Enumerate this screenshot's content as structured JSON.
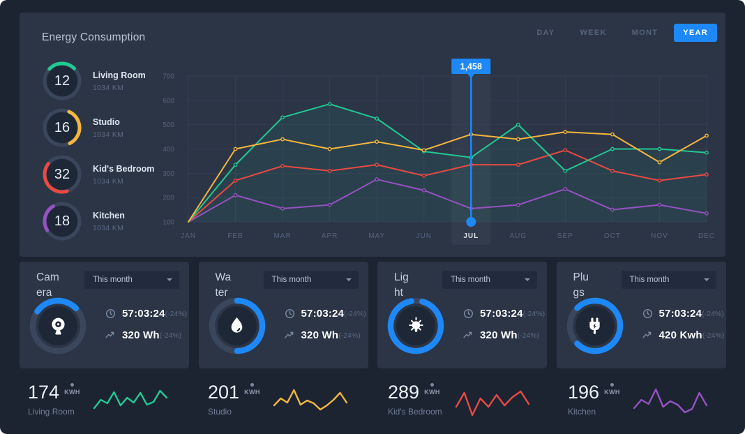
{
  "header": {
    "title": "Energy Consumption",
    "tabs": [
      {
        "label": "DAY",
        "active": false
      },
      {
        "label": "WEEK",
        "active": false
      },
      {
        "label": "MONT",
        "active": false
      },
      {
        "label": "YEAR",
        "active": true
      }
    ]
  },
  "accent": "#1e88f7",
  "gauges": [
    {
      "value": "12",
      "name": "Living Room",
      "sub": "1034 KM",
      "color": "#22c993",
      "arc_pct": 25,
      "arc_rotate": -135
    },
    {
      "value": "16",
      "name": "Studio",
      "sub": "1034 KM",
      "color": "#f5b63e",
      "arc_pct": 36,
      "arc_rotate": -65
    },
    {
      "value": "32",
      "name": "Kid's Bedroom",
      "sub": "1034 KM",
      "color": "#e94a41",
      "arc_pct": 40,
      "arc_rotate": 75
    },
    {
      "value": "18",
      "name": "Kitchen",
      "sub": "1034 KM",
      "color": "#9552c1",
      "arc_pct": 25,
      "arc_rotate": 150
    }
  ],
  "chart_data": {
    "type": "line",
    "title": "Energy Consumption",
    "categories": [
      "JAN",
      "FEB",
      "MAR",
      "APR",
      "MAY",
      "JUN",
      "JUL",
      "AUG",
      "SEP",
      "OCT",
      "NOV",
      "DEC"
    ],
    "yticks": [
      700,
      600,
      500,
      400,
      300,
      200,
      100
    ],
    "ylim": [
      100,
      700
    ],
    "grid": true,
    "legend": false,
    "selected_month": "JUL",
    "tooltip_value": "1,458",
    "series": [
      {
        "name": "Kitchen",
        "color": "#9552c1",
        "values": [
          100,
          210,
          155,
          170,
          275,
          230,
          155,
          170,
          235,
          150,
          170,
          135
        ]
      },
      {
        "name": "Kid's Bedroom",
        "color": "#e94a41",
        "values": [
          100,
          270,
          330,
          310,
          335,
          290,
          335,
          335,
          395,
          310,
          270,
          295
        ]
      },
      {
        "name": "Living Room",
        "color": "#22c993",
        "fill": true,
        "values": [
          100,
          335,
          530,
          585,
          525,
          390,
          365,
          500,
          310,
          400,
          400,
          385
        ]
      },
      {
        "name": "Studio",
        "color": "#f5b63e",
        "values": [
          100,
          400,
          440,
          400,
          430,
          395,
          460,
          440,
          470,
          460,
          345,
          455
        ]
      }
    ]
  },
  "cards": [
    {
      "id": "camera",
      "title": "Camera",
      "title_lines": [
        "Cam",
        "era"
      ],
      "dropdown": "This month",
      "icon": "camera",
      "ring_pct": 28,
      "ring_rotate": -145,
      "stats": [
        {
          "icon": "clock",
          "value": "57:03:24",
          "delta": "(-24%)"
        },
        {
          "icon": "trend",
          "value": "320 Wh",
          "delta": "(-24%)"
        }
      ]
    },
    {
      "id": "water",
      "title": "Water",
      "title_lines": [
        "Wa",
        "ter"
      ],
      "dropdown": "This month",
      "icon": "water",
      "ring_pct": 50,
      "ring_rotate": -90,
      "stats": [
        {
          "icon": "clock",
          "value": "57:03:24",
          "delta": "(-24%)"
        },
        {
          "icon": "trend",
          "value": "320 Wh",
          "delta": "(-24%)"
        }
      ]
    },
    {
      "id": "light",
      "title": "Light",
      "title_lines": [
        "Lig",
        "ht"
      ],
      "dropdown": "This month",
      "icon": "light",
      "ring_pct": 93,
      "ring_rotate": -75,
      "stats": [
        {
          "icon": "clock",
          "value": "57:03:24",
          "delta": "(-24%)"
        },
        {
          "icon": "trend",
          "value": "320 Wh",
          "delta": "(-24%)"
        }
      ]
    },
    {
      "id": "plugs",
      "title": "Plugs",
      "title_lines": [
        "Plu",
        "gs"
      ],
      "dropdown": "This month",
      "icon": "plug",
      "ring_pct": 75,
      "ring_rotate": -135,
      "stats": [
        {
          "icon": "clock",
          "value": "57:03:24",
          "delta": "(-24%)"
        },
        {
          "icon": "trend",
          "value": "420 Kwh",
          "delta": "(-24%)"
        }
      ]
    }
  ],
  "summary": [
    {
      "value": "174",
      "unit": "KWH",
      "name": "Living Room",
      "color": "#22c993",
      "spark": [
        32,
        20,
        25,
        9,
        28,
        17,
        24,
        10,
        27,
        23,
        7,
        17
      ]
    },
    {
      "value": "201",
      "unit": "KWH",
      "name": "Studio",
      "color": "#f5b63e",
      "spark": [
        28,
        18,
        24,
        6,
        27,
        21,
        25,
        34,
        28,
        20,
        10,
        24
      ]
    },
    {
      "value": "289",
      "unit": "KWH",
      "name": "Kid's Bedroom",
      "color": "#e94a41",
      "spark": [
        30,
        10,
        42,
        18,
        30,
        13,
        28,
        16,
        8,
        26
      ]
    },
    {
      "value": "196",
      "unit": "KWH",
      "name": "Kitchen",
      "color": "#9552c1",
      "spark": [
        32,
        20,
        26,
        5,
        30,
        22,
        27,
        38,
        33,
        10,
        28
      ]
    }
  ]
}
